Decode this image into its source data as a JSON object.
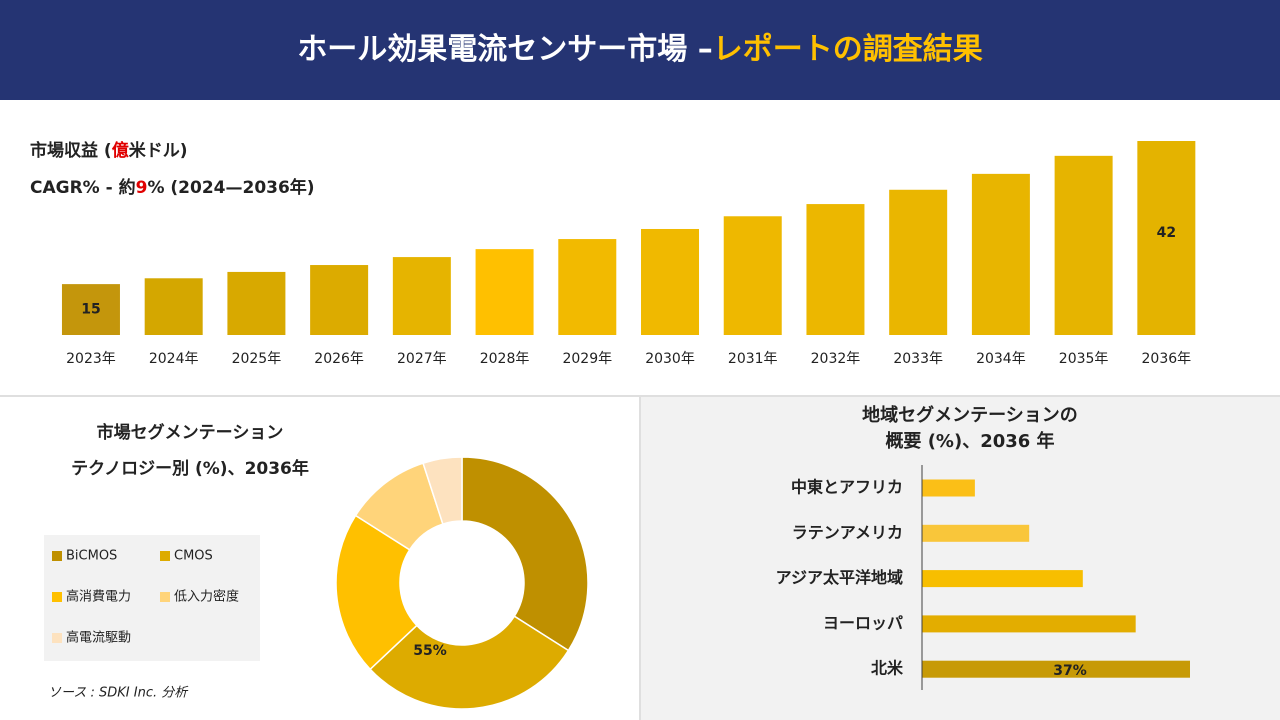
{
  "header": {
    "title_main": "ホール効果電流センサー市場 –",
    "title_highlight": "レポートの調査結果"
  },
  "chart_data": [
    {
      "type": "bar",
      "title_parts": [
        "市場収益 (",
        "億",
        "米ドル)"
      ],
      "subtitle_parts": [
        "CAGR% - 約",
        "9",
        "% (2024—2036年)"
      ],
      "categories": [
        "2023年",
        "2024年",
        "2025年",
        "2026年",
        "2027年",
        "2028年",
        "2029年",
        "2030年",
        "2031年",
        "2032年",
        "2033年",
        "2034年",
        "2035年",
        "2036年"
      ],
      "values": [
        15,
        16.1,
        17.3,
        18.6,
        20.1,
        21.6,
        23.5,
        25.4,
        27.8,
        30.1,
        32.8,
        35.8,
        39.2,
        42
      ],
      "value_labels": [
        "15",
        null,
        null,
        null,
        null,
        null,
        null,
        null,
        null,
        null,
        null,
        null,
        null,
        "42"
      ],
      "colors": [
        "#c4960c",
        "#d4a700",
        "#d8a900",
        "#dcab00",
        "#e6b400",
        "#ffc000",
        "#f2ba00",
        "#f0b900",
        "#eeb800",
        "#ecb700",
        "#eab600",
        "#e8b500",
        "#e6b400",
        "#e4b300"
      ],
      "ylim": [
        5.4,
        42
      ]
    },
    {
      "type": "donut",
      "title_lines": [
        "市場セグメンテーション",
        "テクノロジー別 (%)、2036年"
      ],
      "categories": [
        "BiCMOS",
        "CMOS",
        "高消費電力",
        "低入力密度",
        "高電流駆動"
      ],
      "values": [
        34,
        29,
        21,
        11,
        5
      ],
      "colors": [
        "#bf9000",
        "#ddab00",
        "#ffc000",
        "#ffd47a",
        "#fde2bf"
      ],
      "annotation": "55%"
    },
    {
      "type": "barh",
      "title_lines": [
        "地域セグメンテーションの",
        "概要 (%)、2036 年"
      ],
      "categories": [
        "中東とアフリカ",
        "ラテンアメリカ",
        "アジア太平洋地域",
        "ヨーロッパ",
        "北米"
      ],
      "values": [
        7.3,
        14.8,
        22.2,
        29.5,
        37
      ],
      "value_labels": [
        null,
        null,
        null,
        null,
        "37%"
      ],
      "colors": [
        "#fbbf17",
        "#f9c63a",
        "#f7be00",
        "#e3ad00",
        "#c79a06"
      ],
      "xlim": [
        0,
        37
      ]
    }
  ],
  "source": "ソース : SDKI Inc. 分析"
}
